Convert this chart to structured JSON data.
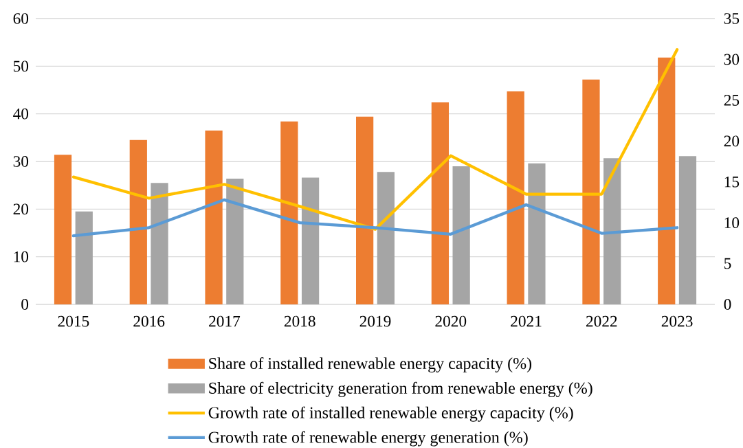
{
  "chart_data": {
    "type": "bar",
    "categories": [
      "2015",
      "2016",
      "2017",
      "2018",
      "2019",
      "2020",
      "2021",
      "2022",
      "2023"
    ],
    "series": [
      {
        "name": "Share of installed renewable energy capacity (%)",
        "color": "#ed7d31",
        "values": [
          31.4,
          34.5,
          36.5,
          38.4,
          39.4,
          42.4,
          44.7,
          47.2,
          51.8
        ]
      },
      {
        "name": "Share of electricity generation from renewable energy (%)",
        "color": "#a5a5a5",
        "values": [
          19.5,
          25.5,
          26.4,
          26.6,
          27.8,
          29.0,
          29.6,
          30.7,
          31.1
        ]
      },
      {
        "name": "Growth rate of installed renewable energy capacity (%)",
        "type": "line",
        "axis": "y2",
        "color": "#ffc000",
        "values": [
          15.6,
          13.0,
          14.7,
          12.0,
          9.2,
          18.2,
          13.5,
          13.5,
          31.2
        ]
      },
      {
        "name": "Growth rate of renewable energy generation (%)",
        "type": "line",
        "axis": "y2",
        "color": "#5b9bd5",
        "values": [
          8.4,
          9.4,
          12.8,
          10.0,
          9.4,
          8.6,
          12.2,
          8.7,
          9.4
        ]
      }
    ],
    "ylim": [
      0,
      60
    ],
    "yticks": [
      0,
      10,
      20,
      30,
      40,
      50,
      60
    ],
    "y2lim": [
      0,
      35
    ],
    "y2ticks": [
      0,
      5,
      10,
      15,
      20,
      25,
      30,
      35
    ],
    "grid": "y",
    "legend": "bottom"
  }
}
